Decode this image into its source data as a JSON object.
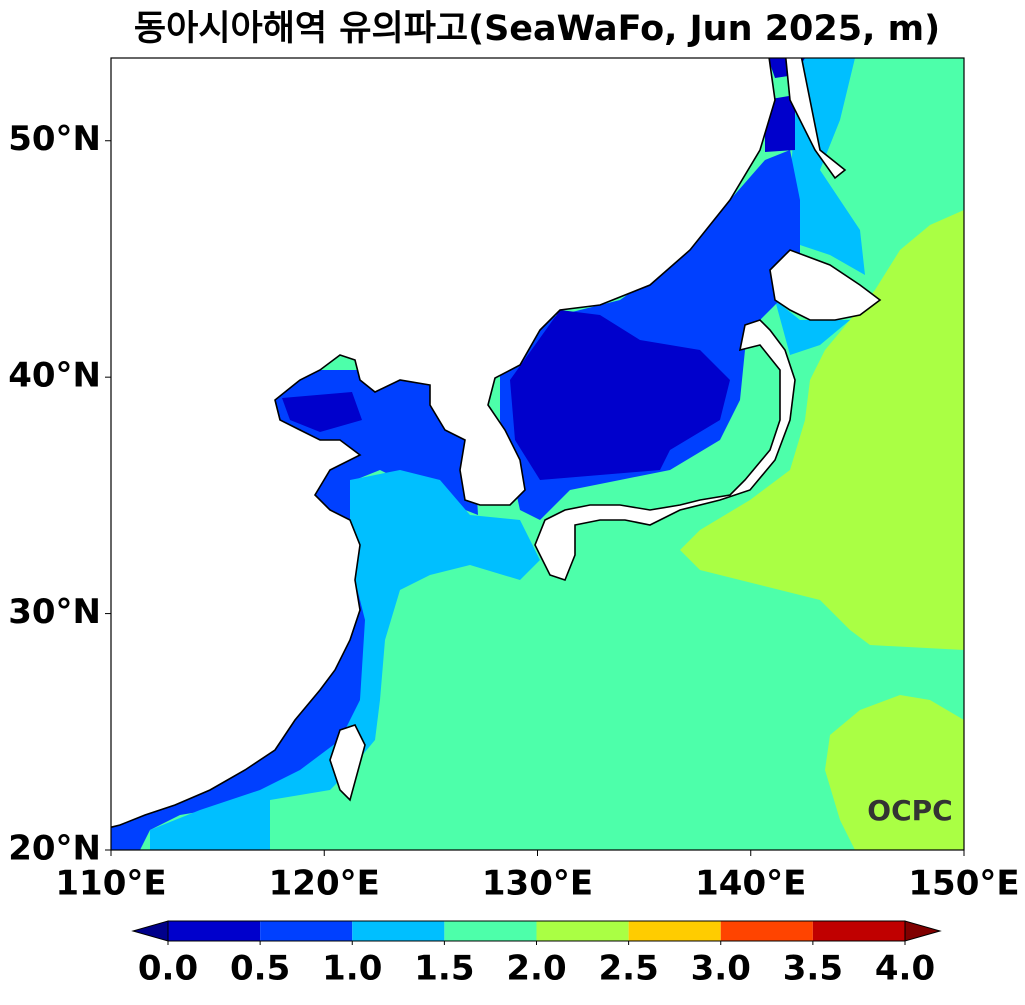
{
  "title": "동아시아해역 유의파고(SeaWaFo, Jun 2025, m)",
  "logo": "OCPC",
  "axes": {
    "xlim": [
      110,
      150
    ],
    "xticks": [
      {
        "value": 110,
        "label": "110°E"
      },
      {
        "value": 120,
        "label": "120°E"
      },
      {
        "value": 130,
        "label": "130°E"
      },
      {
        "value": 140,
        "label": "140°E"
      },
      {
        "value": 150,
        "label": "150°E"
      }
    ],
    "ylim": [
      20,
      53.5
    ],
    "yticks": [
      {
        "value": 20,
        "label": "20°N"
      },
      {
        "value": 30,
        "label": "30°N"
      },
      {
        "value": 40,
        "label": "40°N"
      },
      {
        "value": 50,
        "label": "50°N"
      }
    ]
  },
  "colorbar": {
    "levels": [
      {
        "value": 0,
        "label": "0.0"
      },
      {
        "value": 0.5,
        "label": "0.5"
      },
      {
        "value": 1,
        "label": "1.0"
      },
      {
        "value": 1.5,
        "label": "1.5"
      },
      {
        "value": 2,
        "label": "2.0"
      },
      {
        "value": 2.5,
        "label": "2.5"
      },
      {
        "value": 3,
        "label": "3.0"
      },
      {
        "value": 3.5,
        "label": "3.5"
      },
      {
        "value": 4,
        "label": "4.0"
      }
    ],
    "colors": [
      "#0000cc",
      "#0040ff",
      "#00bfff",
      "#4dffaa",
      "#aaff44",
      "#ffcc00",
      "#ff4400",
      "#c00000"
    ],
    "under_color": "#00008b",
    "over_color": "#800000"
  }
}
